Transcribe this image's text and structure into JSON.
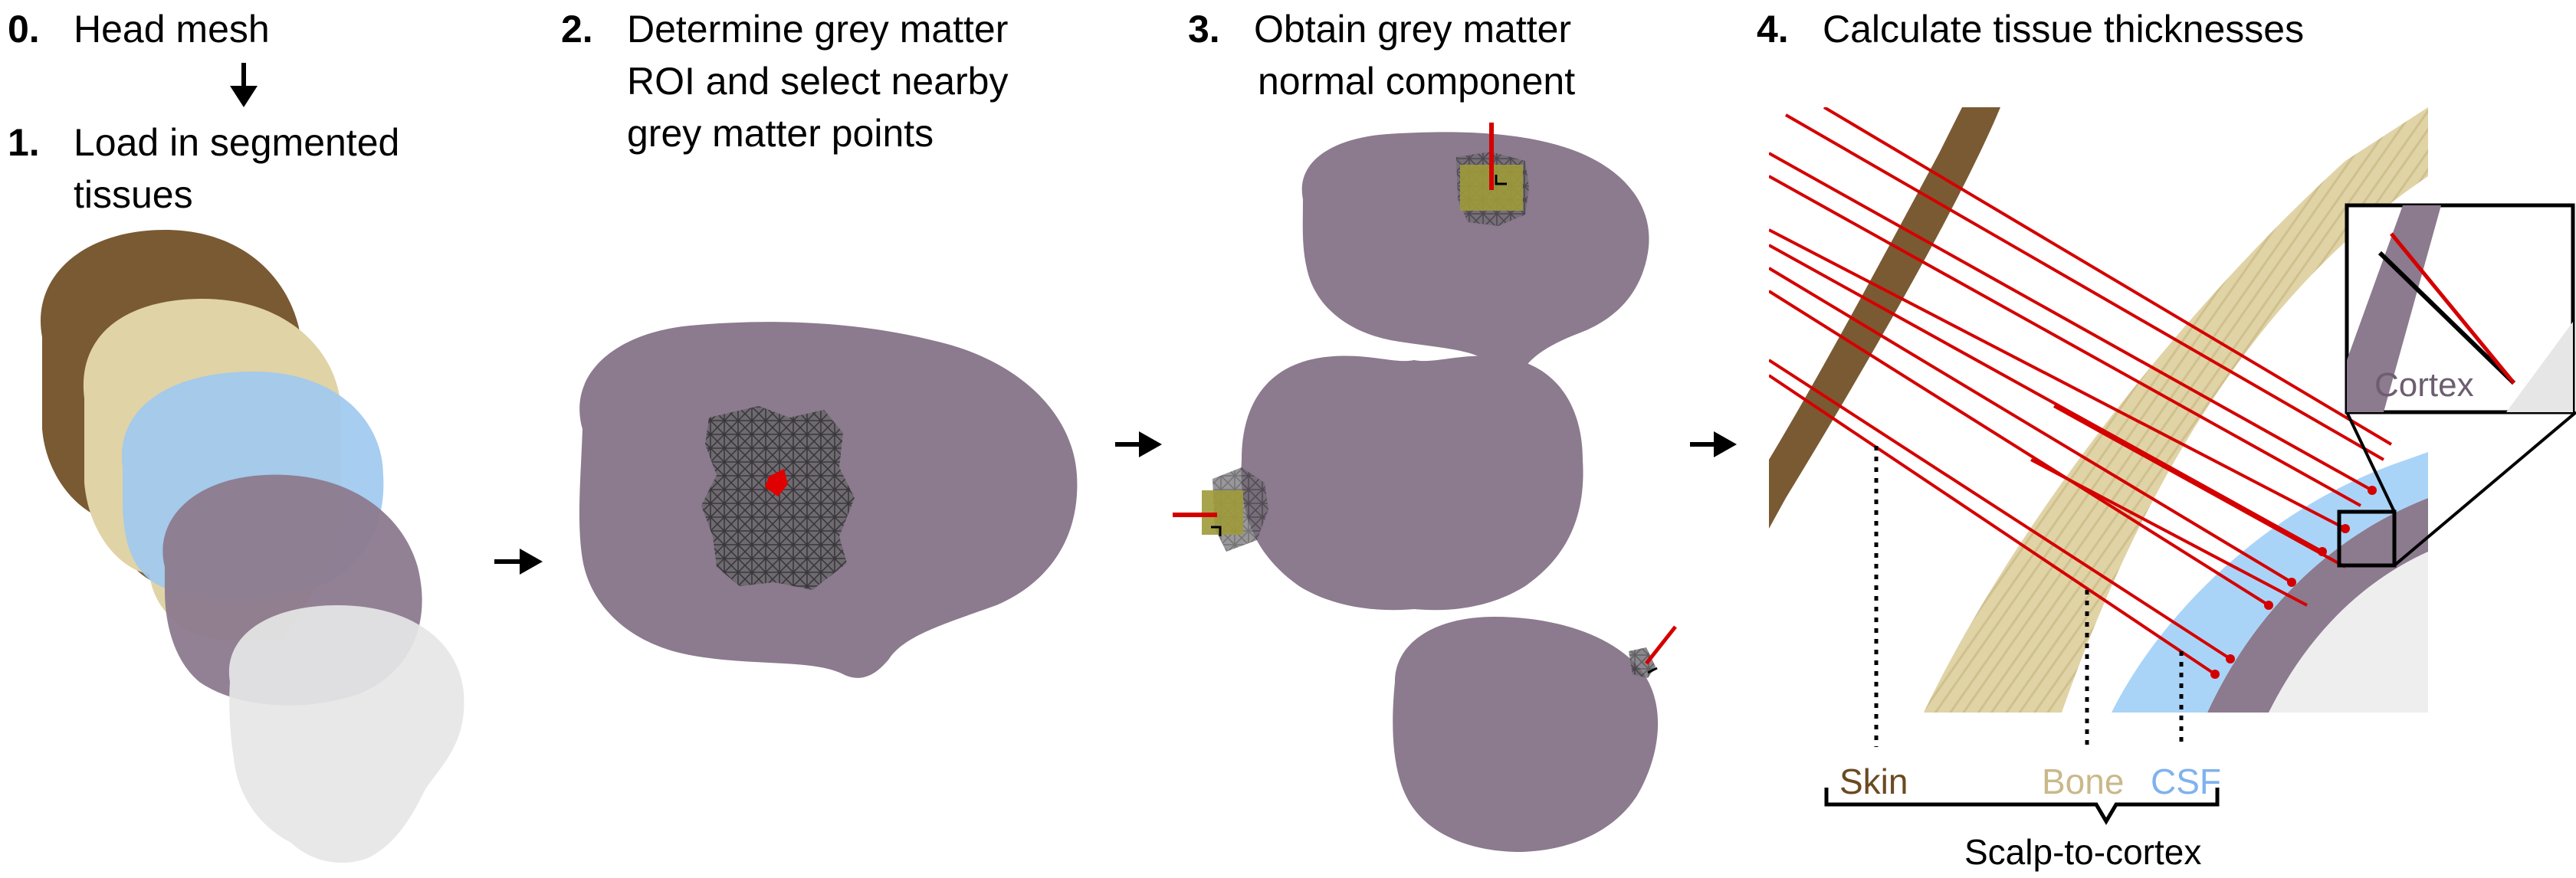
{
  "steps": [
    {
      "number": "0.",
      "lines": [
        "Head mesh"
      ]
    },
    {
      "number": "1.",
      "lines": [
        "Load in segmented",
        "tissues"
      ]
    },
    {
      "number": "2.",
      "lines": [
        "Determine grey matter",
        "ROI and select nearby",
        "grey matter points"
      ]
    },
    {
      "number": "3.",
      "lines": [
        "Obtain grey matter",
        "normal component"
      ]
    },
    {
      "number": "4.",
      "lines": [
        "Calculate tissue thicknesses"
      ]
    }
  ],
  "tissue_labels": {
    "skin": "Skin",
    "bone": "Bone",
    "csf": "CSF",
    "cortex": "Cortex",
    "combined": "Scalp-to-cortex"
  },
  "colors": {
    "skin": "#7a5a33",
    "bone": "#e0d3a6",
    "csf": "#9fc9f0",
    "grey_matter": "#8c7a8e",
    "white_matter": "#e6e6e6",
    "roi_mesh": "#555555",
    "normal_line": "#d40000",
    "skin_text": "#6b4a22",
    "bone_text": "#c9b98a",
    "csf_text": "#7fb2ee"
  }
}
